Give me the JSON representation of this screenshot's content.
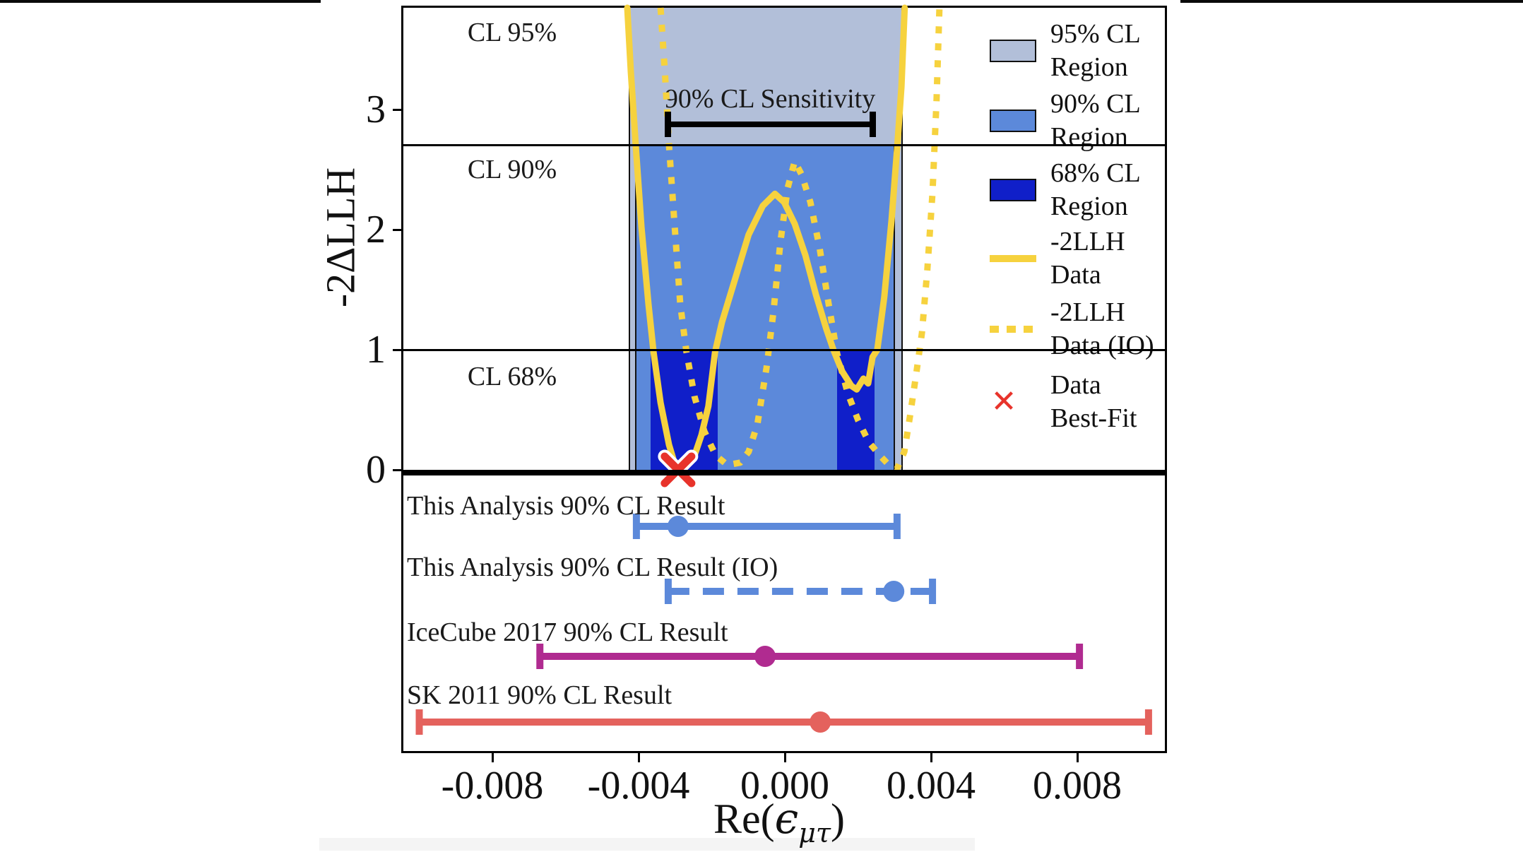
{
  "colors": {
    "band95": "#b2bfd9",
    "band90": "#5c89da",
    "band68": "#101fc9",
    "curve_yellow": "#f6d23e",
    "best_fit_red": "#e8332b",
    "icecube_magenta": "#b02b90",
    "sk_salmon": "#e4625d",
    "black": "#000000"
  },
  "figure": {
    "ylabel": "-2ΔLLH",
    "xlabel": {
      "prefix": "Re(",
      "epsilon": "ϵ",
      "subscript": "μτ",
      "suffix": ")"
    },
    "x_tick_labels": [
      "-0.008",
      "-0.004",
      "0.000",
      "0.004",
      "0.008"
    ],
    "x_tick_values": [
      -0.008,
      -0.004,
      0.0,
      0.004,
      0.008
    ],
    "y_tick_labels": [
      "0",
      "1",
      "2",
      "3"
    ],
    "y_tick_values": [
      0,
      1,
      2,
      3
    ],
    "annotations": {
      "cl95": "CL 95%",
      "cl90": "CL 90%",
      "cl68": "CL 68%",
      "sensitivity": "90% CL Sensitivity"
    }
  },
  "legend": {
    "items": [
      {
        "swatch": "patch95",
        "line1": "95% CL",
        "line2": "Region"
      },
      {
        "swatch": "patch90",
        "line1": "90% CL",
        "line2": "Region"
      },
      {
        "swatch": "patch68",
        "line1": "68% CL",
        "line2": "Region"
      },
      {
        "swatch": "solid-line",
        "line1": "-2LLH",
        "line2": "Data"
      },
      {
        "swatch": "dotted-line",
        "line1": "-2LLH",
        "line2": "Data (IO)"
      },
      {
        "swatch": "x-marker",
        "line1": "Data",
        "line2": "Best-Fit"
      }
    ]
  },
  "chart_data": {
    "type": "line",
    "title": "",
    "xlabel": "Re(epsilon_mu-tau)",
    "ylabel": "-2ΔLLH",
    "upper_panel": {
      "xlim": [
        -0.0105,
        0.0105
      ],
      "ylim": [
        0,
        3.85
      ],
      "grid": false,
      "hlines": [
        {
          "label": "CL 95%",
          "y": 3.85
        },
        {
          "label": "CL 90%",
          "y": 2.71
        },
        {
          "label": "CL 68%",
          "y": 1.0
        }
      ],
      "bands": {
        "cl95": [
          -0.00427,
          0.00323
        ],
        "cl90": [
          -0.0041,
          0.00301
        ],
        "cl68": [
          [
            -0.00367,
            -0.00184
          ],
          [
            0.00143,
            0.00245
          ]
        ]
      },
      "sensitivity_bar": {
        "x_range": [
          -0.00321,
          0.0024
        ],
        "y": 2.88
      },
      "best_fit": {
        "x": -0.00292,
        "y": 0
      },
      "series": [
        {
          "name": "-2LLH Data",
          "style": "solid",
          "points": [
            [
              -0.00431,
              3.85
            ],
            [
              -0.00421,
              3.31
            ],
            [
              -0.00408,
              2.71
            ],
            [
              -0.00392,
              2.02
            ],
            [
              -0.00373,
              1.38
            ],
            [
              -0.00359,
              0.98
            ],
            [
              -0.0034,
              0.56
            ],
            [
              -0.00317,
              0.21
            ],
            [
              -0.00301,
              0.05
            ],
            [
              -0.00292,
              0.01
            ],
            [
              -0.00269,
              0.03
            ],
            [
              -0.00247,
              0.12
            ],
            [
              -0.00228,
              0.29
            ],
            [
              -0.00209,
              0.53
            ],
            [
              -0.00191,
              0.98
            ],
            [
              -0.00172,
              1.23
            ],
            [
              -0.00137,
              1.58
            ],
            [
              -0.00099,
              1.96
            ],
            [
              -0.0006,
              2.2
            ],
            [
              -0.00027,
              2.3
            ],
            [
              -2e-05,
              2.23
            ],
            [
              0.00027,
              2.05
            ],
            [
              0.00056,
              1.79
            ],
            [
              0.00085,
              1.46
            ],
            [
              0.00114,
              1.17
            ],
            [
              0.00133,
              1.0
            ],
            [
              0.00157,
              0.82
            ],
            [
              0.00182,
              0.7
            ],
            [
              0.00197,
              0.67
            ],
            [
              0.00215,
              0.76
            ],
            [
              0.00228,
              0.72
            ],
            [
              0.0024,
              0.94
            ],
            [
              0.00253,
              1.0
            ],
            [
              0.00272,
              1.44
            ],
            [
              0.00292,
              2.08
            ],
            [
              0.00307,
              2.67
            ],
            [
              0.00319,
              3.19
            ],
            [
              0.00328,
              3.85
            ]
          ]
        },
        {
          "name": "-2LLH Data (IO)",
          "style": "dotted",
          "points": [
            [
              -0.0034,
              3.85
            ],
            [
              -0.00328,
              3.31
            ],
            [
              -0.00317,
              2.71
            ],
            [
              -0.00301,
              2.02
            ],
            [
              -0.00286,
              1.38
            ],
            [
              -0.00269,
              0.98
            ],
            [
              -0.00247,
              0.61
            ],
            [
              -0.0022,
              0.32
            ],
            [
              -0.00189,
              0.12
            ],
            [
              -0.00157,
              0.04
            ],
            [
              -0.00122,
              0.06
            ],
            [
              -0.00099,
              0.15
            ],
            [
              -0.00075,
              0.38
            ],
            [
              -0.0005,
              0.85
            ],
            [
              -0.00031,
              1.32
            ],
            [
              -0.00012,
              1.9
            ],
            [
              8e-05,
              2.35
            ],
            [
              0.00027,
              2.57
            ],
            [
              0.00046,
              2.46
            ],
            [
              0.0007,
              2.23
            ],
            [
              0.00095,
              1.85
            ],
            [
              0.0012,
              1.38
            ],
            [
              0.00143,
              0.97
            ],
            [
              0.00172,
              0.64
            ],
            [
              0.00201,
              0.41
            ],
            [
              0.0023,
              0.23
            ],
            [
              0.00263,
              0.11
            ],
            [
              0.00288,
              0.03
            ],
            [
              0.00307,
              0.01
            ],
            [
              0.00327,
              0.15
            ],
            [
              0.00342,
              0.44
            ],
            [
              0.00359,
              0.79
            ],
            [
              0.00375,
              1.14
            ],
            [
              0.0039,
              1.67
            ],
            [
              0.00404,
              2.31
            ],
            [
              0.00415,
              3.08
            ],
            [
              0.00423,
              3.85
            ]
          ]
        }
      ]
    },
    "lower_panel": {
      "rows": [
        {
          "label": "This Analysis 90% CL Result",
          "lo": -0.00406,
          "hi": 0.00307,
          "best": -0.00292,
          "color_key": "band90",
          "style": "solid"
        },
        {
          "label": "This Analysis 90% CL Result (IO)",
          "lo": -0.00319,
          "hi": 0.00404,
          "best": 0.00298,
          "color_key": "band90",
          "style": "dashed"
        },
        {
          "label": "IceCube 2017 90% CL Result",
          "lo": -0.0067,
          "hi": 0.00806,
          "best": -0.00054,
          "color_key": "icecube_magenta",
          "style": "solid"
        },
        {
          "label": "SK 2011 90% CL Result",
          "lo": -0.01,
          "hi": 0.00995,
          "best": 0.00097,
          "color_key": "sk_salmon",
          "style": "solid"
        }
      ]
    }
  }
}
